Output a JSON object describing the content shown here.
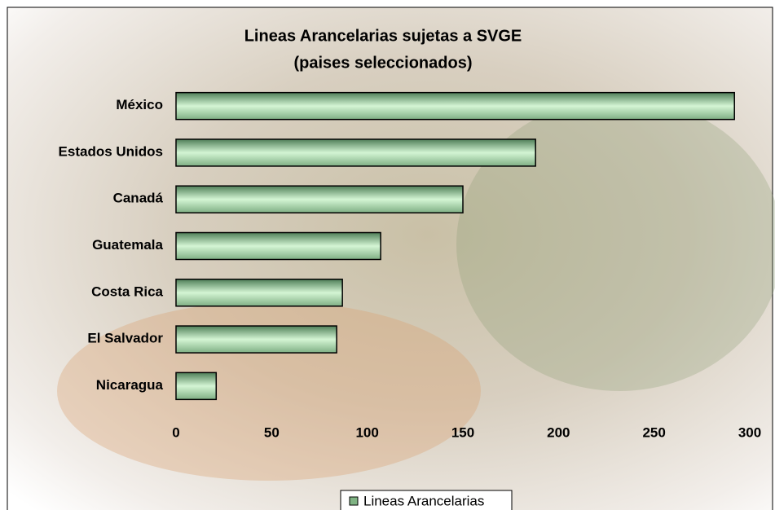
{
  "chart_data": {
    "type": "hbar",
    "title": "Lineas Arancelarias sujetas a SVGE",
    "subtitle": "(paises seleccionados)",
    "categories": [
      "México",
      "Estados Unidos",
      "Canadá",
      "Guatemala",
      "Costa Rica",
      "El Salvador",
      "Nicaragua"
    ],
    "series": [
      {
        "name": "Lineas Arancelarias",
        "color": "#7fb383",
        "values": [
          292,
          188,
          150,
          107,
          87,
          84,
          21
        ]
      }
    ],
    "xlim": [
      0,
      300
    ],
    "xticks": [
      0,
      50,
      100,
      150,
      200,
      250,
      300
    ],
    "grid": false,
    "legend": "bottom"
  }
}
